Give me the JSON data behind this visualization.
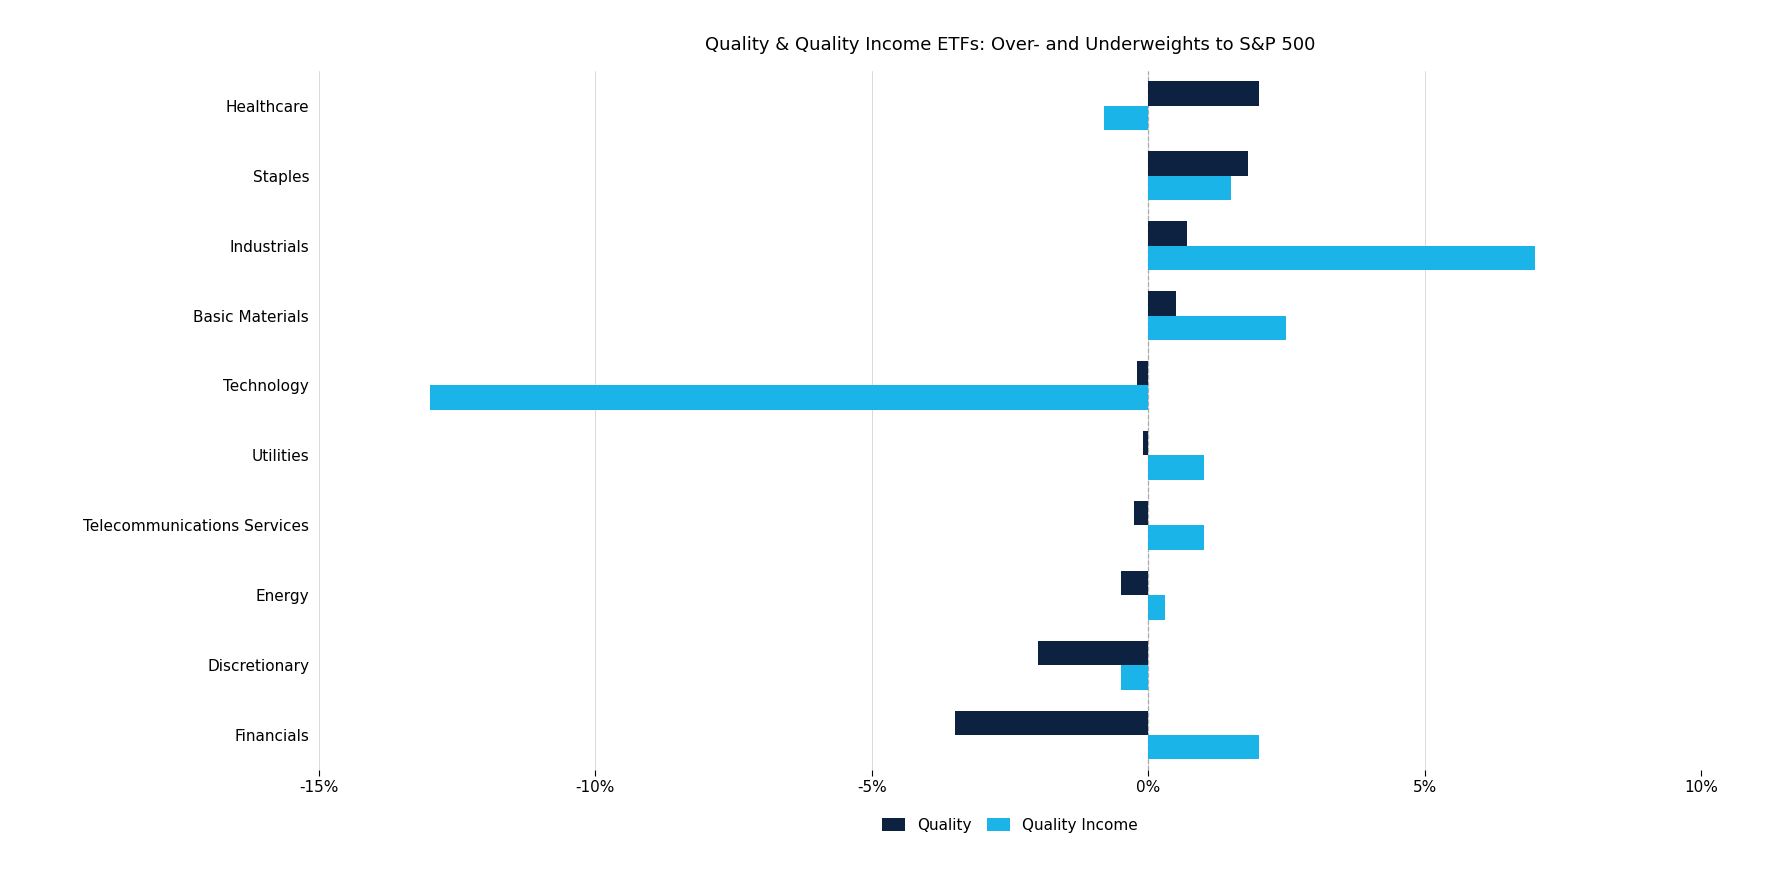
{
  "title": "Quality & Quality Income ETFs: Over- and Underweights to S&P 500",
  "categories": [
    "Healthcare",
    "Staples",
    "Industrials",
    "Basic Materials",
    "Technology",
    "Utilities",
    "Telecommunications Services",
    "Energy",
    "Discretionary",
    "Financials"
  ],
  "quality": [
    2.0,
    1.8,
    0.7,
    0.5,
    -0.2,
    -0.1,
    -0.25,
    -0.5,
    -2.0,
    -3.5
  ],
  "quality_income": [
    -0.8,
    1.5,
    7.0,
    2.5,
    -13.0,
    1.0,
    1.0,
    0.3,
    -0.5,
    2.0
  ],
  "color_quality": "#0d2240",
  "color_quality_income": "#1ab4e8",
  "xlim": [
    -15,
    10
  ],
  "xticks": [
    -15,
    -10,
    -5,
    0,
    5,
    10
  ],
  "bar_height": 0.35,
  "background_color": "#ffffff",
  "legend_labels": [
    "Quality",
    "Quality Income"
  ],
  "title_fontsize": 13,
  "tick_fontsize": 11,
  "label_fontsize": 11
}
